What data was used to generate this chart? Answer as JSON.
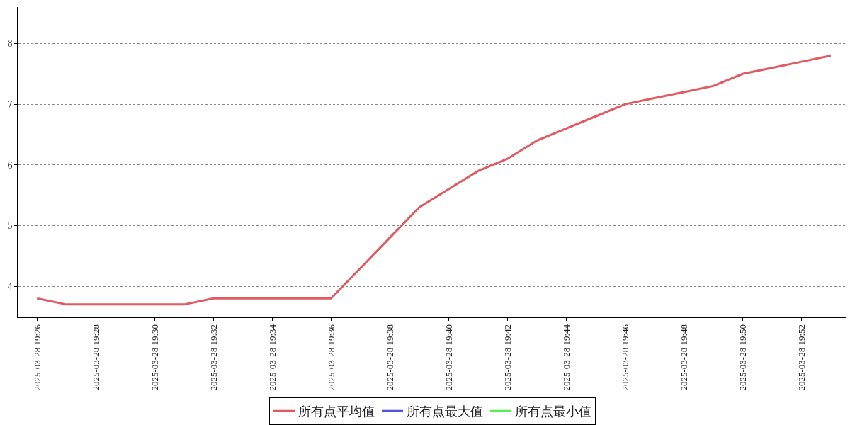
{
  "chart_data": {
    "type": "line",
    "x": [
      "2025-03-28T19:26",
      "2025-03-28T19:27",
      "2025-03-28T19:28",
      "2025-03-28T19:29",
      "2025-03-28T19:30",
      "2025-03-28T19:31",
      "2025-03-28T19:32",
      "2025-03-28T19:33",
      "2025-03-28T19:34",
      "2025-03-28T19:35",
      "2025-03-28T19:36",
      "2025-03-28T19:37",
      "2025-03-28T19:38",
      "2025-03-28T19:39",
      "2025-03-28T19:40",
      "2025-03-28T19:41",
      "2025-03-28T19:42",
      "2025-03-28T19:43",
      "2025-03-28T19:44",
      "2025-03-28T19:45",
      "2025-03-28T19:46",
      "2025-03-28T19:47",
      "2025-03-28T19:48",
      "2025-03-28T19:49",
      "2025-03-28T19:50",
      "2025-03-28T19:51",
      "2025-03-28T19:52",
      "2025-03-28T19:53"
    ],
    "series": [
      {
        "name": "所有点平均值",
        "color": "#e05a60",
        "values": [
          3.8,
          3.7,
          3.7,
          3.7,
          3.7,
          3.7,
          3.8,
          3.8,
          3.8,
          3.8,
          3.8,
          4.3,
          4.8,
          5.3,
          5.6,
          5.9,
          6.1,
          6.4,
          6.6,
          6.8,
          7.0,
          7.1,
          7.2,
          7.3,
          7.5,
          7.6,
          7.7,
          7.8
        ]
      },
      {
        "name": "所有点最大值",
        "color": "#5555dd",
        "values": [
          null,
          null,
          null,
          null,
          null,
          null,
          null,
          null,
          null,
          null,
          null,
          null,
          null,
          null,
          null,
          null,
          null,
          null,
          null,
          null,
          null,
          null,
          null,
          null,
          null,
          null,
          null,
          null
        ]
      },
      {
        "name": "所有点最小值",
        "color": "#55ee55",
        "values": [
          null,
          null,
          null,
          null,
          null,
          null,
          null,
          null,
          null,
          null,
          null,
          null,
          null,
          null,
          null,
          null,
          null,
          null,
          null,
          null,
          null,
          null,
          null,
          null,
          null,
          null,
          null,
          null
        ]
      }
    ],
    "xlim": [
      "2025-03-28T19:25:22",
      "2025-03-28T19:53:32"
    ],
    "xticks": [
      {
        "value": "2025-03-28T19:26",
        "label": "2025-03-28 19:26"
      },
      {
        "value": "2025-03-28T19:28",
        "label": "2025-03-28 19:28"
      },
      {
        "value": "2025-03-28T19:30",
        "label": "2025-03-28 19:30"
      },
      {
        "value": "2025-03-28T19:32",
        "label": "2025-03-28 19:32"
      },
      {
        "value": "2025-03-28T19:34",
        "label": "2025-03-28 19:34"
      },
      {
        "value": "2025-03-28T19:36",
        "label": "2025-03-28 19:36"
      },
      {
        "value": "2025-03-28T19:38",
        "label": "2025-03-28 19:38"
      },
      {
        "value": "2025-03-28T19:40",
        "label": "2025-03-28 19:40"
      },
      {
        "value": "2025-03-28T19:42",
        "label": "2025-03-28 19:42"
      },
      {
        "value": "2025-03-28T19:44",
        "label": "2025-03-28 19:44"
      },
      {
        "value": "2025-03-28T19:46",
        "label": "2025-03-28 19:46"
      },
      {
        "value": "2025-03-28T19:48",
        "label": "2025-03-28 19:48"
      },
      {
        "value": "2025-03-28T19:50",
        "label": "2025-03-28 19:50"
      },
      {
        "value": "2025-03-28T19:52",
        "label": "2025-03-28 19:52"
      }
    ],
    "ylim": [
      3.5,
      8.6
    ],
    "yticks": [
      4,
      5,
      6,
      7,
      8
    ],
    "grid": "y",
    "legend": "bottom",
    "marker": "none",
    "line_style": "solid"
  }
}
